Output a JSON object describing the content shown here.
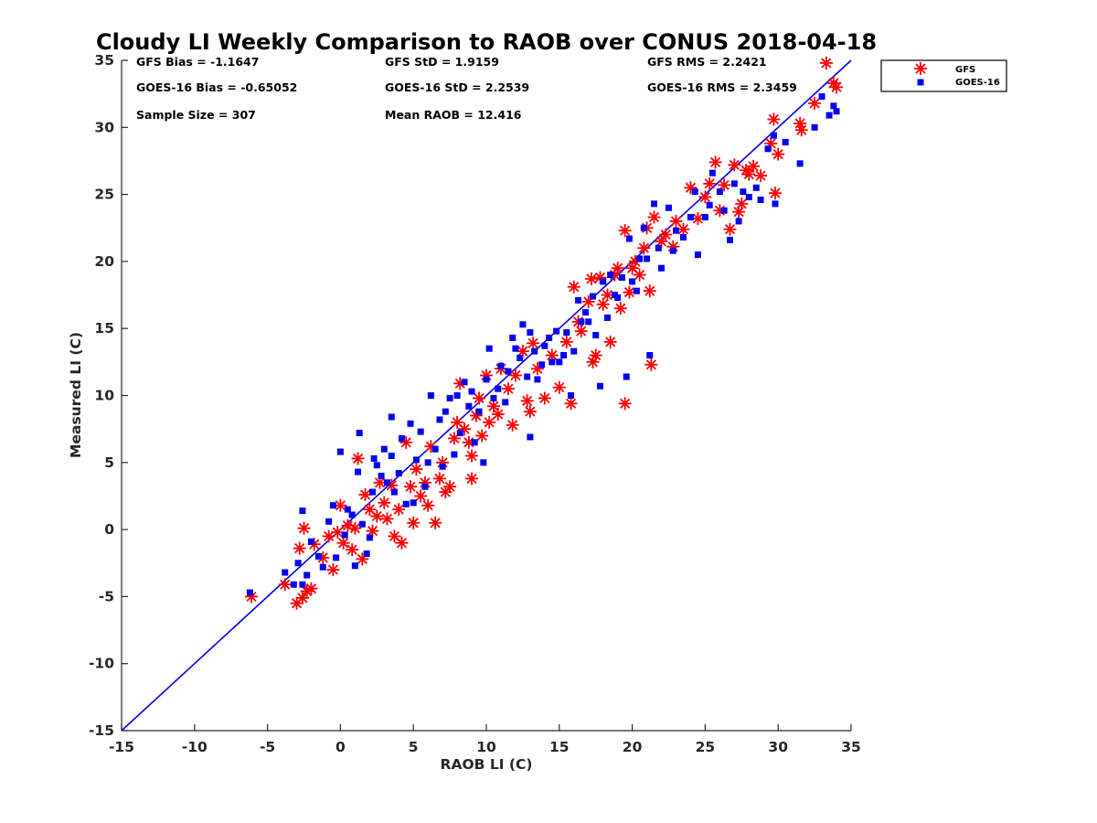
{
  "chart_data": {
    "type": "scatter",
    "title": "Cloudy LI Weekly Comparison to RAOB over CONUS 2018-04-18",
    "xlabel": "RAOB LI (C)",
    "ylabel": "Measured LI (C)",
    "xlim": [
      -15,
      35
    ],
    "ylim": [
      -15,
      35
    ],
    "xticks": [
      -15,
      -10,
      -5,
      0,
      5,
      10,
      15,
      20,
      25,
      30,
      35
    ],
    "yticks": [
      -15,
      -10,
      -5,
      0,
      5,
      10,
      15,
      20,
      25,
      30,
      35
    ],
    "grid": false,
    "legend_position": "outside-top-right",
    "reference_line": {
      "label": "",
      "color": "#0000ee",
      "from": [
        -15,
        -15
      ],
      "to": [
        35,
        35
      ]
    },
    "stats": [
      "GFS Bias = -1.1647",
      "GFS StD = 1.9159",
      "GFS RMS = 2.2421",
      "GOES-16 Bias = -0.65052",
      "GOES-16 StD = 2.2539",
      "GOES-16 RMS = 2.3459",
      "Sample Size = 307",
      "Mean RAOB = 12.416"
    ],
    "series": [
      {
        "name": "GFS",
        "marker": "asterisk",
        "color": "#ff0000",
        "points": [
          [
            -6.1,
            -5.0
          ],
          [
            -3.8,
            -4.1
          ],
          [
            -3.0,
            -5.5
          ],
          [
            -2.6,
            -5.1
          ],
          [
            -2.3,
            -4.6
          ],
          [
            -2.0,
            -4.4
          ],
          [
            -2.8,
            -1.4
          ],
          [
            -2.5,
            0.1
          ],
          [
            -1.8,
            -1.1
          ],
          [
            -1.2,
            -2.1
          ],
          [
            -0.8,
            -0.5
          ],
          [
            -0.5,
            -3.0
          ],
          [
            -0.2,
            -0.2
          ],
          [
            0.0,
            1.8
          ],
          [
            0.2,
            -1.0
          ],
          [
            0.5,
            0.3
          ],
          [
            0.8,
            -1.5
          ],
          [
            1.0,
            0.1
          ],
          [
            1.2,
            5.3
          ],
          [
            1.5,
            -2.2
          ],
          [
            1.7,
            2.6
          ],
          [
            2.0,
            1.5
          ],
          [
            2.2,
            -0.1
          ],
          [
            2.5,
            1.0
          ],
          [
            2.7,
            3.5
          ],
          [
            3.0,
            2.0
          ],
          [
            3.2,
            0.8
          ],
          [
            3.5,
            3.3
          ],
          [
            3.7,
            -0.5
          ],
          [
            4.0,
            1.5
          ],
          [
            4.2,
            -1.0
          ],
          [
            4.5,
            6.5
          ],
          [
            4.8,
            3.2
          ],
          [
            5.0,
            0.5
          ],
          [
            5.2,
            4.5
          ],
          [
            5.5,
            2.5
          ],
          [
            5.8,
            3.5
          ],
          [
            6.0,
            1.8
          ],
          [
            6.2,
            6.2
          ],
          [
            6.5,
            0.5
          ],
          [
            6.8,
            3.8
          ],
          [
            7.0,
            5.0
          ],
          [
            7.2,
            2.8
          ],
          [
            7.5,
            3.2
          ],
          [
            7.8,
            6.8
          ],
          [
            8.0,
            8.0
          ],
          [
            8.2,
            10.9
          ],
          [
            8.5,
            7.5
          ],
          [
            8.8,
            6.5
          ],
          [
            9.0,
            5.5
          ],
          [
            9.0,
            3.8
          ],
          [
            9.3,
            8.5
          ],
          [
            9.5,
            9.8
          ],
          [
            9.7,
            7.0
          ],
          [
            10.0,
            11.5
          ],
          [
            10.2,
            8.0
          ],
          [
            10.5,
            9.2
          ],
          [
            10.8,
            8.6
          ],
          [
            11.0,
            12.0
          ],
          [
            11.5,
            10.5
          ],
          [
            11.8,
            7.8
          ],
          [
            12.0,
            11.5
          ],
          [
            12.5,
            13.3
          ],
          [
            12.8,
            9.6
          ],
          [
            13.0,
            8.8
          ],
          [
            13.2,
            13.9
          ],
          [
            13.5,
            12.0
          ],
          [
            14.0,
            9.8
          ],
          [
            14.5,
            13.0
          ],
          [
            15.0,
            10.6
          ],
          [
            15.5,
            14.0
          ],
          [
            15.8,
            9.4
          ],
          [
            16.0,
            18.1
          ],
          [
            16.3,
            15.5
          ],
          [
            16.5,
            14.8
          ],
          [
            17.0,
            17.0
          ],
          [
            17.2,
            18.7
          ],
          [
            17.3,
            12.5
          ],
          [
            17.5,
            13.0
          ],
          [
            17.8,
            18.8
          ],
          [
            18.0,
            16.8
          ],
          [
            18.3,
            17.5
          ],
          [
            18.5,
            14.0
          ],
          [
            18.8,
            19.0
          ],
          [
            19.0,
            19.5
          ],
          [
            19.2,
            16.5
          ],
          [
            19.5,
            22.3
          ],
          [
            19.5,
            9.4
          ],
          [
            19.8,
            17.7
          ],
          [
            20.0,
            19.5
          ],
          [
            20.2,
            20.0
          ],
          [
            20.5,
            19.0
          ],
          [
            20.8,
            21.0
          ],
          [
            21.0,
            22.5
          ],
          [
            21.2,
            17.8
          ],
          [
            21.3,
            12.3
          ],
          [
            21.5,
            23.3
          ],
          [
            22.0,
            21.5
          ],
          [
            22.3,
            22.0
          ],
          [
            22.8,
            21.1
          ],
          [
            23.0,
            23.0
          ],
          [
            23.5,
            22.4
          ],
          [
            24.0,
            25.5
          ],
          [
            24.5,
            23.2
          ],
          [
            25.0,
            24.8
          ],
          [
            25.3,
            25.8
          ],
          [
            25.7,
            27.4
          ],
          [
            26.0,
            23.8
          ],
          [
            26.3,
            25.7
          ],
          [
            26.7,
            22.4
          ],
          [
            27.0,
            27.2
          ],
          [
            27.3,
            23.7
          ],
          [
            27.5,
            24.3
          ],
          [
            27.8,
            26.8
          ],
          [
            28.0,
            26.5
          ],
          [
            28.3,
            27.1
          ],
          [
            28.8,
            26.4
          ],
          [
            29.5,
            28.8
          ],
          [
            29.7,
            30.6
          ],
          [
            29.8,
            25.1
          ],
          [
            30.0,
            28.0
          ],
          [
            31.5,
            30.3
          ],
          [
            31.6,
            29.8
          ],
          [
            32.5,
            31.8
          ],
          [
            33.3,
            34.8
          ],
          [
            33.8,
            33.3
          ],
          [
            34.0,
            33.0
          ]
        ]
      },
      {
        "name": "GOES-16",
        "marker": "square",
        "color": "#0000ee",
        "points": [
          [
            -6.2,
            -4.7
          ],
          [
            -3.8,
            -3.2
          ],
          [
            -3.2,
            -4.1
          ],
          [
            -2.9,
            -2.5
          ],
          [
            -2.6,
            -4.1
          ],
          [
            -2.6,
            1.4
          ],
          [
            -2.3,
            -3.4
          ],
          [
            -2.0,
            -0.9
          ],
          [
            -1.5,
            -2.0
          ],
          [
            -1.2,
            -2.8
          ],
          [
            -0.8,
            0.6
          ],
          [
            -0.5,
            1.8
          ],
          [
            -0.3,
            -2.1
          ],
          [
            0.0,
            5.8
          ],
          [
            0.3,
            -0.4
          ],
          [
            0.5,
            1.5
          ],
          [
            0.8,
            1.1
          ],
          [
            1.0,
            -2.7
          ],
          [
            1.2,
            4.3
          ],
          [
            1.3,
            7.2
          ],
          [
            1.5,
            0.4
          ],
          [
            1.8,
            -1.8
          ],
          [
            2.0,
            -0.6
          ],
          [
            2.2,
            2.8
          ],
          [
            2.3,
            5.3
          ],
          [
            2.5,
            4.8
          ],
          [
            2.8,
            4.0
          ],
          [
            3.0,
            6.0
          ],
          [
            3.2,
            3.5
          ],
          [
            3.5,
            8.4
          ],
          [
            3.5,
            5.5
          ],
          [
            3.7,
            2.8
          ],
          [
            4.0,
            4.2
          ],
          [
            4.2,
            6.8
          ],
          [
            4.5,
            1.9
          ],
          [
            4.8,
            7.9
          ],
          [
            5.0,
            2.0
          ],
          [
            5.2,
            5.2
          ],
          [
            5.5,
            7.3
          ],
          [
            5.8,
            3.2
          ],
          [
            6.0,
            5.0
          ],
          [
            6.2,
            10.0
          ],
          [
            6.5,
            6.0
          ],
          [
            6.8,
            8.2
          ],
          [
            7.0,
            4.7
          ],
          [
            7.2,
            8.8
          ],
          [
            7.5,
            9.8
          ],
          [
            7.8,
            5.6
          ],
          [
            8.0,
            10.0
          ],
          [
            8.2,
            7.2
          ],
          [
            8.5,
            11.0
          ],
          [
            8.8,
            9.2
          ],
          [
            9.0,
            10.3
          ],
          [
            9.2,
            6.5
          ],
          [
            9.5,
            8.8
          ],
          [
            9.8,
            5.0
          ],
          [
            10.0,
            11.2
          ],
          [
            10.2,
            13.5
          ],
          [
            10.5,
            9.8
          ],
          [
            10.8,
            10.5
          ],
          [
            11.0,
            12.2
          ],
          [
            11.3,
            9.5
          ],
          [
            11.5,
            11.8
          ],
          [
            11.8,
            14.3
          ],
          [
            12.0,
            13.5
          ],
          [
            12.3,
            12.8
          ],
          [
            12.5,
            15.3
          ],
          [
            12.8,
            11.4
          ],
          [
            13.0,
            14.7
          ],
          [
            13.0,
            6.9
          ],
          [
            13.3,
            13.3
          ],
          [
            13.5,
            11.2
          ],
          [
            13.8,
            12.3
          ],
          [
            14.0,
            13.7
          ],
          [
            14.3,
            14.3
          ],
          [
            14.5,
            12.5
          ],
          [
            14.8,
            14.8
          ],
          [
            15.0,
            12.5
          ],
          [
            15.3,
            13.0
          ],
          [
            15.5,
            14.7
          ],
          [
            15.8,
            10.0
          ],
          [
            16.0,
            13.3
          ],
          [
            16.3,
            17.1
          ],
          [
            16.5,
            15.5
          ],
          [
            16.8,
            16.2
          ],
          [
            17.0,
            15.5
          ],
          [
            17.3,
            17.4
          ],
          [
            17.5,
            14.5
          ],
          [
            17.8,
            10.7
          ],
          [
            18.0,
            18.5
          ],
          [
            18.3,
            15.8
          ],
          [
            18.5,
            19.0
          ],
          [
            18.8,
            17.5
          ],
          [
            19.0,
            17.3
          ],
          [
            19.3,
            18.8
          ],
          [
            19.6,
            11.4
          ],
          [
            19.8,
            21.7
          ],
          [
            20.0,
            18.5
          ],
          [
            20.3,
            17.8
          ],
          [
            20.5,
            20.2
          ],
          [
            20.8,
            22.5
          ],
          [
            21.0,
            20.2
          ],
          [
            21.2,
            13.0
          ],
          [
            21.5,
            24.3
          ],
          [
            21.8,
            21.0
          ],
          [
            22.0,
            19.5
          ],
          [
            22.5,
            24.0
          ],
          [
            22.8,
            20.8
          ],
          [
            23.0,
            22.3
          ],
          [
            23.5,
            21.8
          ],
          [
            24.0,
            23.3
          ],
          [
            24.3,
            25.2
          ],
          [
            24.5,
            20.5
          ],
          [
            25.0,
            23.3
          ],
          [
            25.3,
            24.2
          ],
          [
            25.5,
            26.6
          ],
          [
            26.0,
            25.2
          ],
          [
            26.3,
            23.8
          ],
          [
            26.7,
            21.6
          ],
          [
            27.0,
            25.8
          ],
          [
            27.3,
            23.0
          ],
          [
            27.6,
            25.2
          ],
          [
            28.0,
            24.8
          ],
          [
            28.5,
            25.5
          ],
          [
            28.8,
            24.6
          ],
          [
            29.3,
            28.4
          ],
          [
            29.7,
            29.4
          ],
          [
            29.8,
            24.3
          ],
          [
            30.5,
            28.9
          ],
          [
            31.5,
            27.3
          ],
          [
            32.5,
            30.0
          ],
          [
            33.0,
            32.3
          ],
          [
            33.5,
            30.9
          ],
          [
            33.8,
            31.6
          ],
          [
            34.0,
            31.2
          ]
        ]
      }
    ]
  }
}
